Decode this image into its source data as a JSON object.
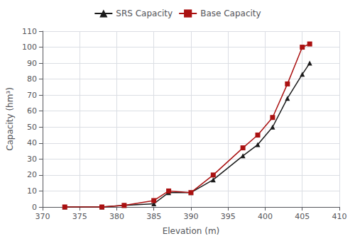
{
  "chart_data": {
    "type": "line",
    "xlabel": "Elevation (m)",
    "ylabel": "Capacity (hm³)",
    "x": [
      373,
      378,
      381,
      385,
      387,
      390,
      393,
      397,
      399,
      401,
      403,
      405,
      406
    ],
    "series": [
      {
        "name": "SRS Capacity",
        "color": "#1a1a1a",
        "marker": "triangle",
        "values": [
          0,
          0,
          1,
          2,
          9,
          9,
          17,
          32,
          39,
          50,
          68,
          83,
          90
        ]
      },
      {
        "name": "Base Capacity",
        "color": "#aa1111",
        "marker": "square",
        "values": [
          0,
          0,
          1,
          4,
          10,
          9,
          20,
          37,
          45,
          56,
          77,
          100,
          102
        ]
      }
    ],
    "xlim": [
      370,
      410
    ],
    "ylim": [
      0,
      110
    ],
    "xticks": [
      370,
      375,
      380,
      385,
      390,
      395,
      400,
      405,
      410
    ],
    "yticks": [
      0,
      10,
      20,
      30,
      40,
      50,
      60,
      70,
      80,
      90,
      100,
      110
    ],
    "grid": true,
    "legend": "top"
  }
}
